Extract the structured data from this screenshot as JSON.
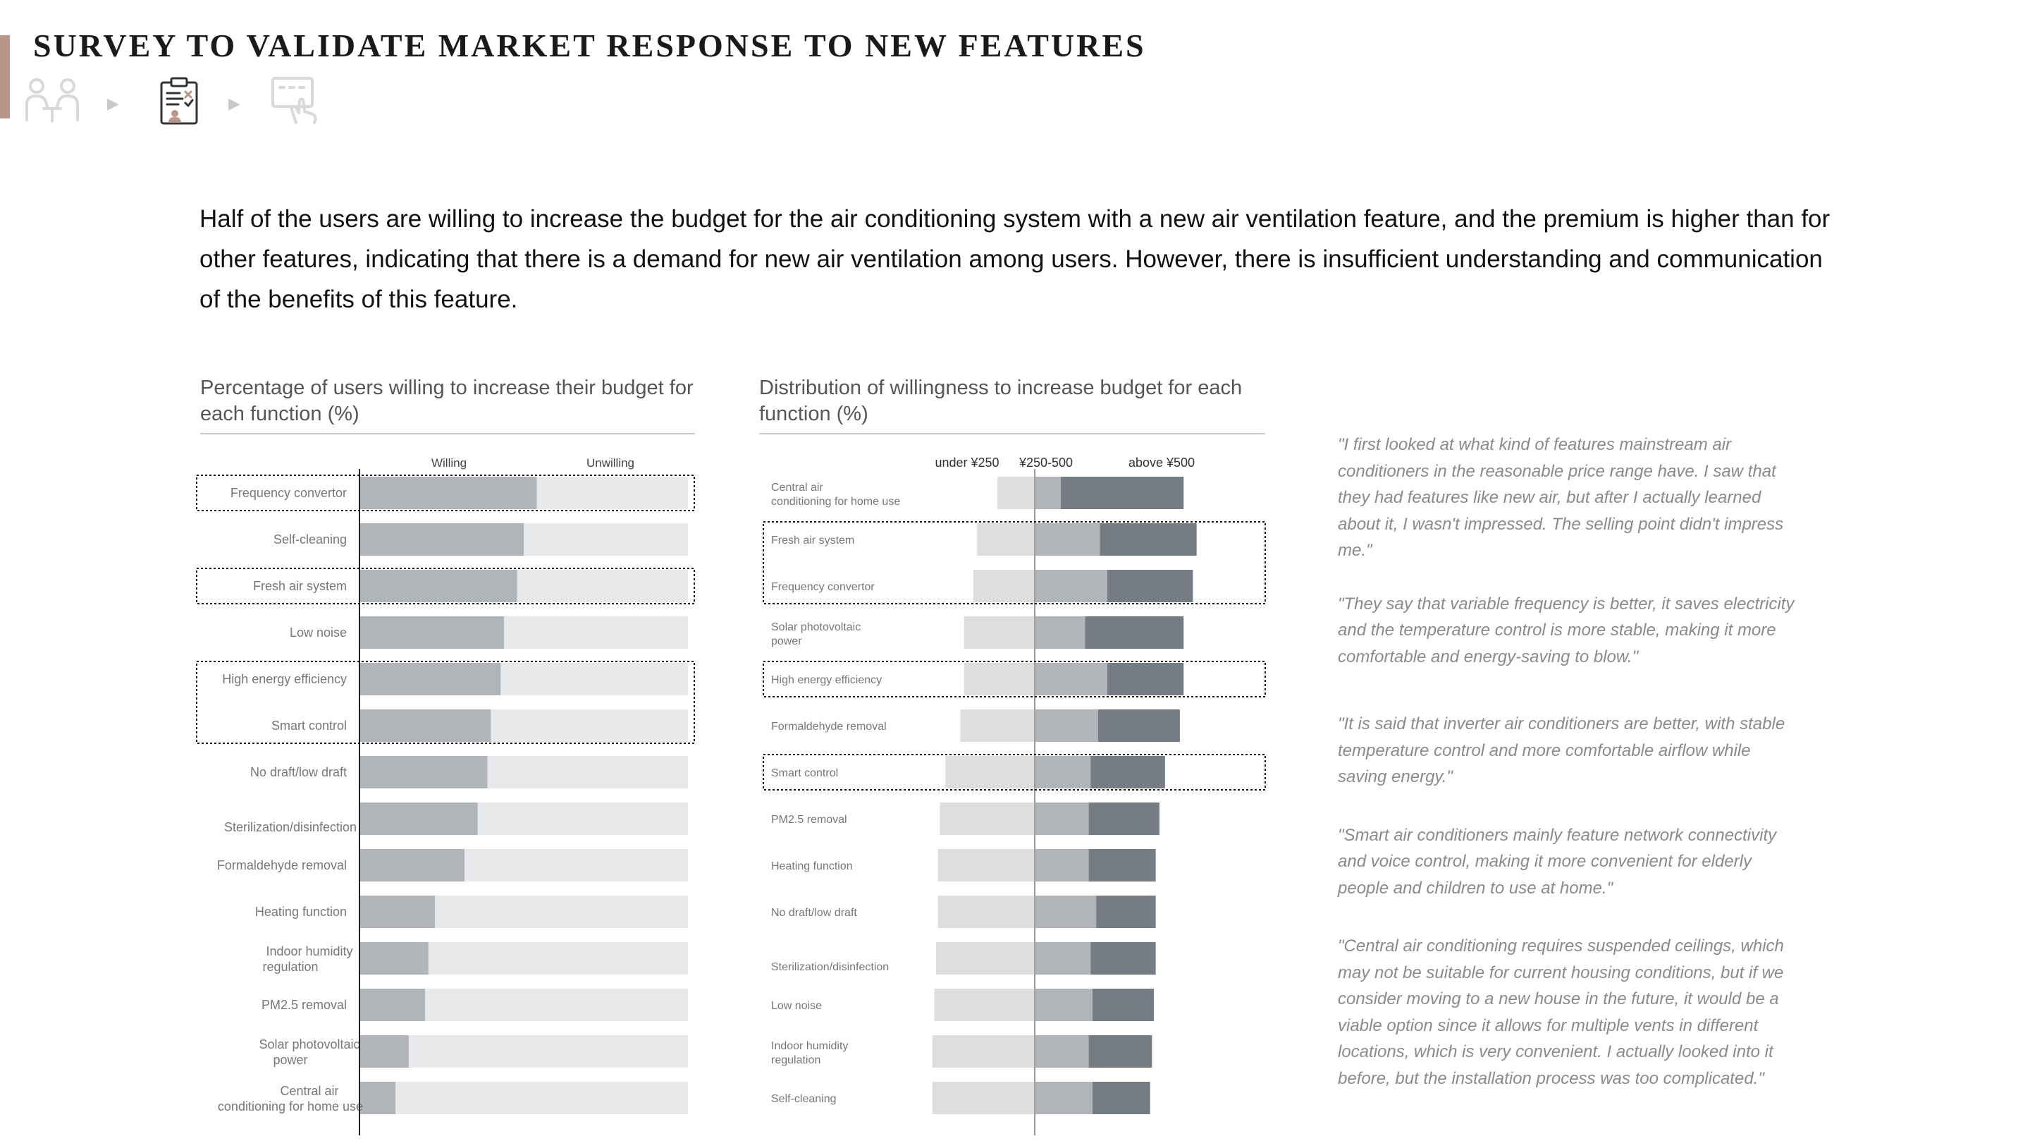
{
  "page": {
    "title": "SURVEY TO VALIDATE MARKET RESPONSE TO NEW FEATURES",
    "steps": [
      {
        "icon": "interview-icon",
        "state": "inactive"
      },
      {
        "icon": "survey-clipboard-icon",
        "state": "active"
      },
      {
        "icon": "touchscreen-test-icon",
        "state": "inactive"
      }
    ],
    "summary": "Half of the users are willing to increase the budget for the air conditioning system with a new air ventilation feature, and the premium is higher than for other features, indicating that there is a demand for new air ventilation among users. However, there is insufficient understanding and communication of the benefits of this feature.",
    "colors": {
      "accent": "#b8978a"
    }
  },
  "chart_data": [
    {
      "type": "bar",
      "orientation": "horizontal",
      "stacked": true,
      "title": "Percentage of users willing to increase their budget for each function (%)",
      "legend": [
        "Willing",
        "Unwilling"
      ],
      "categories": [
        "Frequency convertor",
        "Self-cleaning",
        "Fresh air system",
        "Low noise",
        "High energy efficiency",
        "Smart control",
        "No draft/low draft",
        "Sterilization/disinfection",
        "Formaldehyde removal",
        "Heating function",
        "Indoor humidity regulation",
        "PM2.5 removal",
        "Solar photovoltaic power",
        "Central air conditioning for home use"
      ],
      "series": [
        {
          "name": "Willing",
          "values": [
            54,
            50,
            48,
            44,
            43,
            40,
            39,
            36,
            32,
            23,
            21,
            20,
            15,
            11
          ],
          "color": "#b1b5ba"
        },
        {
          "name": "Unwilling",
          "values": [
            46,
            50,
            52,
            56,
            57,
            60,
            61,
            64,
            68,
            77,
            79,
            80,
            85,
            89
          ],
          "color": "#e8e9ea"
        }
      ],
      "xlim": [
        0,
        100
      ],
      "highlighted": [
        "Frequency convertor",
        "Fresh air system",
        "High energy efficiency",
        "Smart control"
      ]
    },
    {
      "type": "bar",
      "orientation": "horizontal",
      "stacked": true,
      "diverging": true,
      "title": "Distribution of willingness to increase budget for each function (%)",
      "legend": [
        "under ¥250",
        "¥250-500",
        "above ¥500"
      ],
      "categories": [
        "Central air conditioning for home use",
        "Fresh air system",
        "Frequency convertor",
        "Solar photovoltaic power",
        "High energy efficiency",
        "Formaldehyde removal",
        "Smart control",
        "PM2.5 removal",
        "Heating function",
        "No draft/low draft",
        "Sterilization/disinfection",
        "Low noise",
        "Indoor humidity regulation",
        "Self-cleaning"
      ],
      "series": [
        {
          "name": "under ¥250",
          "values": [
            20,
            31,
            33,
            38,
            38,
            40,
            48,
            51,
            52,
            52,
            53,
            54,
            55,
            55
          ],
          "color": "#dcdee0"
        },
        {
          "name": "¥250-500",
          "values": [
            14,
            35,
            39,
            27,
            39,
            34,
            30,
            29,
            29,
            33,
            30,
            31,
            29,
            31
          ],
          "color": "#b1b5ba"
        },
        {
          "name": "above ¥500",
          "values": [
            66,
            52,
            46,
            53,
            41,
            44,
            40,
            38,
            36,
            32,
            35,
            33,
            34,
            31
          ],
          "color": "#757c83"
        }
      ],
      "highlighted_groups": [
        [
          "Fresh air system",
          "Frequency convertor"
        ],
        [
          "High energy efficiency"
        ],
        [
          "Smart control"
        ]
      ]
    }
  ],
  "quotes": [
    "\"I first looked at what kind of features mainstream air conditioners in the reasonable price range have. I saw that they had features like new air, but after I actually learned about it, I wasn't impressed. The selling point didn't impress me.\"",
    "\"They say that variable frequency is better, it saves electricity and the temperature control is more stable, making it more comfortable and energy-saving to blow.\"",
    "\"It is said that inverter air conditioners are better, with stable temperature control and more comfortable airflow while saving energy.\"",
    "\"Smart air conditioners mainly feature network connectivity and voice control, making it more convenient for elderly people and children to use at home.\"",
    "\"Central air conditioning requires suspended ceilings, which may not be suitable for current housing conditions, but if we consider moving to a new house in the future, it would be a viable option since it allows for multiple vents in different locations, which is very convenient. I actually looked into it before, but the installation process was too complicated.\""
  ]
}
